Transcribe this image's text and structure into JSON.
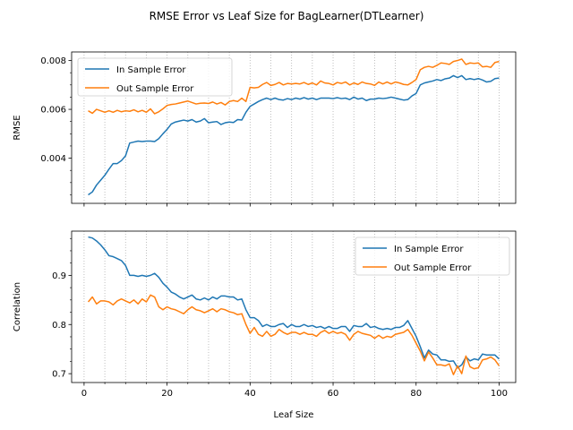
{
  "figure": {
    "title": "RMSE Error vs Leaf Size for BagLearner(DTLearner)"
  },
  "chart_data": [
    {
      "type": "line",
      "title": "",
      "xlabel": "",
      "ylabel": "RMSE",
      "xlim": [
        -3,
        104
      ],
      "ylim": [
        0.00215,
        0.00835
      ],
      "xticks": [
        0,
        20,
        40,
        60,
        80,
        100
      ],
      "show_xtick_labels": false,
      "yticks": [
        0.004,
        0.006,
        0.008
      ],
      "ytick_labels": [
        "0.004",
        "0.006",
        "0.008"
      ],
      "yminor_step": 0.0005,
      "grid": "x-minor dotted every 5",
      "legend_position": "upper-left",
      "series_colors": [
        "#1f77b4",
        "#ff7f0e"
      ],
      "x": [
        1,
        2,
        3,
        4,
        5,
        6,
        7,
        8,
        9,
        10,
        11,
        12,
        13,
        14,
        15,
        16,
        17,
        18,
        19,
        20,
        21,
        22,
        23,
        24,
        25,
        26,
        27,
        28,
        29,
        30,
        31,
        32,
        33,
        34,
        35,
        36,
        37,
        38,
        39,
        40,
        41,
        42,
        43,
        44,
        45,
        46,
        47,
        48,
        49,
        50,
        51,
        52,
        53,
        54,
        55,
        56,
        57,
        58,
        59,
        60,
        61,
        62,
        63,
        64,
        65,
        66,
        67,
        68,
        69,
        70,
        71,
        72,
        73,
        74,
        75,
        76,
        77,
        78,
        79,
        80,
        81,
        82,
        83,
        84,
        85,
        86,
        87,
        88,
        89,
        90,
        91,
        92,
        93,
        94,
        95,
        96,
        97,
        98,
        99,
        100
      ],
      "series": [
        {
          "name": "In Sample Error",
          "values": [
            0.0025,
            0.00262,
            0.0029,
            0.0031,
            0.0033,
            0.00355,
            0.00378,
            0.00378,
            0.0039,
            0.0041,
            0.00462,
            0.00466,
            0.0047,
            0.00468,
            0.0047,
            0.0047,
            0.00468,
            0.0048,
            0.005,
            0.00518,
            0.0054,
            0.00548,
            0.00552,
            0.00556,
            0.00552,
            0.00558,
            0.00548,
            0.00552,
            0.00562,
            0.00545,
            0.00548,
            0.0055,
            0.00538,
            0.00545,
            0.00548,
            0.00546,
            0.00558,
            0.00556,
            0.00588,
            0.00612,
            0.00622,
            0.00632,
            0.0064,
            0.00646,
            0.0064,
            0.00646,
            0.0064,
            0.00638,
            0.00644,
            0.0064,
            0.00646,
            0.00642,
            0.00648,
            0.00642,
            0.00646,
            0.0064,
            0.00646,
            0.00646,
            0.00646,
            0.00644,
            0.00648,
            0.00644,
            0.00646,
            0.0064,
            0.0065,
            0.00642,
            0.00646,
            0.00636,
            0.00642,
            0.00642,
            0.00646,
            0.00644,
            0.00646,
            0.0065,
            0.00646,
            0.00642,
            0.00638,
            0.0064,
            0.00655,
            0.00665,
            0.007,
            0.00708,
            0.00712,
            0.00716,
            0.00722,
            0.00718,
            0.00725,
            0.00728,
            0.00738,
            0.0073,
            0.00738,
            0.00722,
            0.00726,
            0.00722,
            0.00726,
            0.0072,
            0.00712,
            0.00715,
            0.00726,
            0.00728
          ]
        },
        {
          "name": "Out Sample Error",
          "values": [
            0.00594,
            0.00584,
            0.006,
            0.00594,
            0.00588,
            0.00594,
            0.00588,
            0.00596,
            0.0059,
            0.00594,
            0.00592,
            0.00598,
            0.0059,
            0.00596,
            0.00588,
            0.00602,
            0.00582,
            0.0059,
            0.00602,
            0.00616,
            0.0062,
            0.00622,
            0.00626,
            0.0063,
            0.00634,
            0.00628,
            0.00622,
            0.00625,
            0.00626,
            0.00624,
            0.0063,
            0.00622,
            0.00628,
            0.00618,
            0.00632,
            0.00636,
            0.00632,
            0.00646,
            0.00632,
            0.0069,
            0.00688,
            0.0069,
            0.00702,
            0.0071,
            0.00698,
            0.00702,
            0.0071,
            0.007,
            0.00706,
            0.00704,
            0.00706,
            0.00704,
            0.0071,
            0.00702,
            0.00708,
            0.007,
            0.00716,
            0.00708,
            0.00706,
            0.007,
            0.0071,
            0.00706,
            0.00712,
            0.007,
            0.00708,
            0.00702,
            0.00712,
            0.00706,
            0.00704,
            0.00698,
            0.00712,
            0.00704,
            0.00712,
            0.00704,
            0.00712,
            0.00708,
            0.00702,
            0.007,
            0.0071,
            0.00722,
            0.00762,
            0.00772,
            0.00776,
            0.00772,
            0.0078,
            0.0079,
            0.00788,
            0.00784,
            0.00796,
            0.008,
            0.00806,
            0.00784,
            0.0079,
            0.00788,
            0.0079,
            0.00774,
            0.00776,
            0.00772,
            0.00792,
            0.00796
          ]
        }
      ]
    },
    {
      "type": "line",
      "title": "",
      "xlabel": "Leaf Size",
      "ylabel": "Correlation",
      "xlim": [
        -3,
        104
      ],
      "ylim": [
        0.682,
        0.99
      ],
      "xticks": [
        0,
        20,
        40,
        60,
        80,
        100
      ],
      "xtick_labels": [
        "0",
        "20",
        "40",
        "60",
        "80",
        "100"
      ],
      "show_xtick_labels": true,
      "yticks": [
        0.7,
        0.8,
        0.9
      ],
      "ytick_labels": [
        "0.7",
        "0.8",
        "0.9"
      ],
      "yminor_step": 0.025,
      "grid": "x-minor dotted every 5",
      "legend_position": "upper-right",
      "series_colors": [
        "#1f77b4",
        "#ff7f0e"
      ],
      "x": [
        1,
        2,
        3,
        4,
        5,
        6,
        7,
        8,
        9,
        10,
        11,
        12,
        13,
        14,
        15,
        16,
        17,
        18,
        19,
        20,
        21,
        22,
        23,
        24,
        25,
        26,
        27,
        28,
        29,
        30,
        31,
        32,
        33,
        34,
        35,
        36,
        37,
        38,
        39,
        40,
        41,
        42,
        43,
        44,
        45,
        46,
        47,
        48,
        49,
        50,
        51,
        52,
        53,
        54,
        55,
        56,
        57,
        58,
        59,
        60,
        61,
        62,
        63,
        64,
        65,
        66,
        67,
        68,
        69,
        70,
        71,
        72,
        73,
        74,
        75,
        76,
        77,
        78,
        79,
        80,
        81,
        82,
        83,
        84,
        85,
        86,
        87,
        88,
        89,
        90,
        91,
        92,
        93,
        94,
        95,
        96,
        97,
        98,
        99,
        100
      ],
      "series": [
        {
          "name": "In Sample Error",
          "values": [
            0.978,
            0.976,
            0.97,
            0.962,
            0.952,
            0.94,
            0.938,
            0.934,
            0.93,
            0.92,
            0.9,
            0.9,
            0.898,
            0.9,
            0.898,
            0.9,
            0.904,
            0.896,
            0.884,
            0.876,
            0.866,
            0.862,
            0.856,
            0.852,
            0.856,
            0.86,
            0.852,
            0.85,
            0.854,
            0.85,
            0.856,
            0.852,
            0.858,
            0.858,
            0.856,
            0.856,
            0.85,
            0.852,
            0.83,
            0.814,
            0.814,
            0.808,
            0.796,
            0.8,
            0.796,
            0.796,
            0.8,
            0.802,
            0.794,
            0.8,
            0.796,
            0.796,
            0.8,
            0.796,
            0.798,
            0.794,
            0.796,
            0.792,
            0.796,
            0.792,
            0.792,
            0.796,
            0.796,
            0.786,
            0.798,
            0.796,
            0.796,
            0.802,
            0.794,
            0.796,
            0.792,
            0.79,
            0.792,
            0.79,
            0.794,
            0.794,
            0.798,
            0.808,
            0.792,
            0.776,
            0.755,
            0.732,
            0.748,
            0.74,
            0.738,
            0.728,
            0.728,
            0.725,
            0.726,
            0.712,
            0.718,
            0.734,
            0.726,
            0.73,
            0.728,
            0.74,
            0.738,
            0.738,
            0.738,
            0.73
          ]
        },
        {
          "name": "Out Sample Error",
          "values": [
            0.846,
            0.856,
            0.842,
            0.848,
            0.848,
            0.846,
            0.84,
            0.848,
            0.852,
            0.848,
            0.844,
            0.85,
            0.842,
            0.852,
            0.846,
            0.86,
            0.856,
            0.836,
            0.83,
            0.836,
            0.832,
            0.83,
            0.826,
            0.822,
            0.83,
            0.836,
            0.83,
            0.828,
            0.824,
            0.828,
            0.832,
            0.826,
            0.832,
            0.83,
            0.826,
            0.824,
            0.82,
            0.822,
            0.8,
            0.782,
            0.794,
            0.78,
            0.776,
            0.786,
            0.776,
            0.78,
            0.79,
            0.784,
            0.78,
            0.784,
            0.784,
            0.78,
            0.784,
            0.78,
            0.78,
            0.776,
            0.784,
            0.788,
            0.782,
            0.786,
            0.782,
            0.784,
            0.78,
            0.768,
            0.78,
            0.786,
            0.782,
            0.78,
            0.778,
            0.772,
            0.778,
            0.772,
            0.776,
            0.774,
            0.78,
            0.782,
            0.784,
            0.79,
            0.778,
            0.762,
            0.746,
            0.726,
            0.744,
            0.732,
            0.718,
            0.718,
            0.716,
            0.72,
            0.698,
            0.716,
            0.7,
            0.736,
            0.714,
            0.71,
            0.712,
            0.728,
            0.73,
            0.734,
            0.728,
            0.716
          ]
        }
      ]
    }
  ]
}
